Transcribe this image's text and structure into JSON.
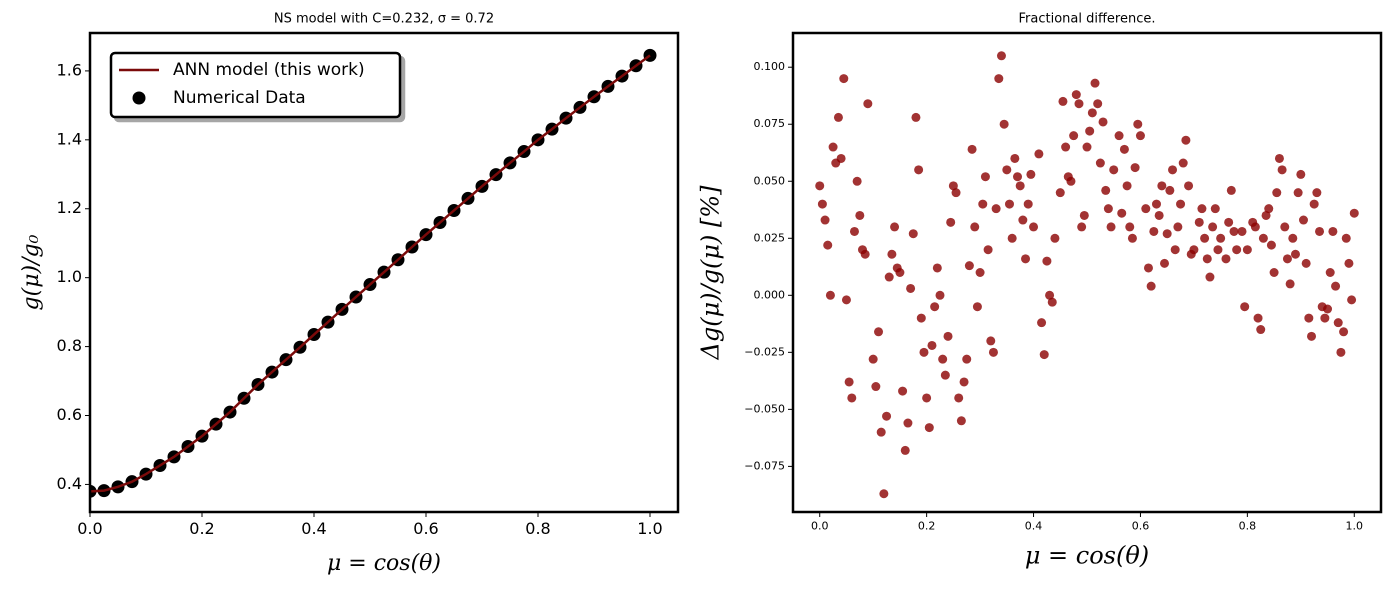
{
  "chart_data": [
    {
      "type": "line",
      "title": "NS model with C=0.232, σ = 0.72",
      "xlabel": "μ = cos(θ)",
      "ylabel": "g(μ)/g₀",
      "x": [
        0,
        0.025,
        0.05,
        0.075,
        0.1,
        0.125,
        0.15,
        0.175,
        0.2,
        0.225,
        0.25,
        0.275,
        0.3,
        0.325,
        0.35,
        0.375,
        0.4,
        0.425,
        0.45,
        0.475,
        0.5,
        0.525,
        0.55,
        0.575,
        0.6,
        0.625,
        0.65,
        0.675,
        0.7,
        0.725,
        0.75,
        0.775,
        0.8,
        0.825,
        0.85,
        0.875,
        0.9,
        0.925,
        0.95,
        0.975,
        1
      ],
      "series": [
        {
          "name": "ANN model (this work)",
          "type": "line",
          "color": "#7b0a0a",
          "values": [
            0.38,
            0.382,
            0.393,
            0.408,
            0.43,
            0.455,
            0.48,
            0.51,
            0.54,
            0.575,
            0.61,
            0.65,
            0.69,
            0.726,
            0.762,
            0.798,
            0.835,
            0.871,
            0.908,
            0.944,
            0.98,
            1.016,
            1.052,
            1.089,
            1.125,
            1.16,
            1.195,
            1.23,
            1.265,
            1.299,
            1.333,
            1.366,
            1.4,
            1.431,
            1.463,
            1.494,
            1.525,
            1.555,
            1.585,
            1.615,
            1.645
          ]
        },
        {
          "name": "Numerical Data",
          "type": "scatter",
          "color": "#000000",
          "values": [
            0.38,
            0.382,
            0.393,
            0.408,
            0.43,
            0.455,
            0.48,
            0.51,
            0.54,
            0.575,
            0.61,
            0.65,
            0.69,
            0.726,
            0.762,
            0.798,
            0.835,
            0.871,
            0.908,
            0.944,
            0.98,
            1.016,
            1.052,
            1.089,
            1.125,
            1.16,
            1.195,
            1.23,
            1.265,
            1.299,
            1.333,
            1.366,
            1.4,
            1.431,
            1.463,
            1.494,
            1.525,
            1.555,
            1.585,
            1.615,
            1.645
          ]
        }
      ],
      "xlim": [
        0,
        1.05
      ],
      "ylim": [
        0.32,
        1.71
      ],
      "xticks": [
        {
          "value": 0,
          "label": "0.0"
        },
        0.2,
        0.4,
        0.6,
        0.8,
        {
          "value": 1,
          "label": "1.0"
        }
      ],
      "yticks": [
        0.4,
        0.6,
        0.8,
        {
          "value": 1,
          "label": "1.0"
        },
        1.2,
        1.4,
        1.6
      ],
      "legend": "upper left"
    },
    {
      "type": "scatter",
      "title": "Fractional difference.",
      "xlabel": "μ = cos(θ)",
      "ylabel": "Δg(μ)/g(μ)  [%]",
      "color": "#8b0000",
      "x": [
        0,
        0.005,
        0.01,
        0.015,
        0.02,
        0.025,
        0.03,
        0.035,
        0.04,
        0.045,
        0.05,
        0.055,
        0.06,
        0.065,
        0.07,
        0.075,
        0.08,
        0.085,
        0.09,
        0.1,
        0.105,
        0.11,
        0.115,
        0.12,
        0.125,
        0.13,
        0.135,
        0.14,
        0.145,
        0.15,
        0.155,
        0.16,
        0.165,
        0.17,
        0.175,
        0.18,
        0.185,
        0.19,
        0.195,
        0.2,
        0.205,
        0.21,
        0.215,
        0.22,
        0.225,
        0.23,
        0.235,
        0.24,
        0.245,
        0.25,
        0.255,
        0.26,
        0.265,
        0.27,
        0.275,
        0.28,
        0.285,
        0.29,
        0.295,
        0.3,
        0.305,
        0.31,
        0.315,
        0.32,
        0.325,
        0.33,
        0.335,
        0.34,
        0.345,
        0.35,
        0.355,
        0.36,
        0.365,
        0.37,
        0.375,
        0.38,
        0.385,
        0.39,
        0.395,
        0.4,
        0.41,
        0.415,
        0.42,
        0.425,
        0.43,
        0.435,
        0.44,
        0.45,
        0.455,
        0.46,
        0.465,
        0.47,
        0.475,
        0.48,
        0.485,
        0.49,
        0.495,
        0.5,
        0.505,
        0.51,
        0.515,
        0.52,
        0.525,
        0.53,
        0.535,
        0.54,
        0.545,
        0.55,
        0.56,
        0.565,
        0.57,
        0.575,
        0.58,
        0.585,
        0.59,
        0.595,
        0.6,
        0.61,
        0.615,
        0.62,
        0.625,
        0.63,
        0.635,
        0.64,
        0.645,
        0.65,
        0.655,
        0.66,
        0.665,
        0.67,
        0.675,
        0.68,
        0.685,
        0.69,
        0.695,
        0.7,
        0.71,
        0.715,
        0.72,
        0.725,
        0.73,
        0.735,
        0.74,
        0.745,
        0.75,
        0.76,
        0.765,
        0.77,
        0.775,
        0.78,
        0.79,
        0.795,
        0.8,
        0.81,
        0.815,
        0.82,
        0.825,
        0.83,
        0.835,
        0.84,
        0.845,
        0.85,
        0.855,
        0.86,
        0.865,
        0.87,
        0.875,
        0.88,
        0.885,
        0.89,
        0.895,
        0.9,
        0.905,
        0.91,
        0.915,
        0.92,
        0.925,
        0.93,
        0.935,
        0.94,
        0.945,
        0.95,
        0.955,
        0.96,
        0.965,
        0.97,
        0.975,
        0.98,
        0.985,
        0.99,
        0.995,
        1
      ],
      "values": [
        0.048,
        0.04,
        0.033,
        0.022,
        0,
        0.065,
        0.058,
        0.078,
        0.06,
        0.095,
        -0.002,
        -0.038,
        -0.045,
        0.028,
        0.05,
        0.035,
        0.02,
        0.018,
        0.084,
        -0.028,
        -0.04,
        -0.016,
        -0.06,
        -0.087,
        -0.053,
        0.008,
        0.018,
        0.03,
        0.012,
        0.01,
        -0.042,
        -0.068,
        -0.056,
        0.003,
        0.027,
        0.078,
        0.055,
        -0.01,
        -0.025,
        -0.045,
        -0.058,
        -0.022,
        -0.005,
        0.012,
        0,
        -0.028,
        -0.035,
        -0.018,
        0.032,
        0.048,
        0.045,
        -0.045,
        -0.055,
        -0.038,
        -0.028,
        0.013,
        0.064,
        0.03,
        -0.005,
        0.01,
        0.04,
        0.052,
        0.02,
        -0.02,
        -0.025,
        0.038,
        0.095,
        0.105,
        0.075,
        0.055,
        0.04,
        0.025,
        0.06,
        0.052,
        0.048,
        0.033,
        0.016,
        0.04,
        0.053,
        0.03,
        0.062,
        -0.012,
        -0.026,
        0.015,
        0,
        -0.003,
        0.025,
        0.045,
        0.085,
        0.065,
        0.052,
        0.05,
        0.07,
        0.088,
        0.084,
        0.03,
        0.035,
        0.065,
        0.072,
        0.08,
        0.093,
        0.084,
        0.058,
        0.076,
        0.046,
        0.038,
        0.03,
        0.055,
        0.07,
        0.036,
        0.064,
        0.048,
        0.03,
        0.025,
        0.056,
        0.075,
        0.07,
        0.038,
        0.012,
        0.004,
        0.028,
        0.04,
        0.035,
        0.048,
        0.014,
        0.027,
        0.046,
        0.055,
        0.02,
        0.03,
        0.04,
        0.058,
        0.068,
        0.048,
        0.018,
        0.02,
        0.032,
        0.038,
        0.025,
        0.016,
        0.008,
        0.03,
        0.038,
        0.02,
        0.025,
        0.016,
        0.032,
        0.046,
        0.028,
        0.02,
        0.028,
        -0.005,
        0.02,
        0.032,
        0.03,
        -0.01,
        -0.015,
        0.025,
        0.035,
        0.038,
        0.022,
        0.01,
        0.045,
        0.06,
        0.055,
        0.03,
        0.016,
        0.005,
        0.025,
        0.018,
        0.045,
        0.053,
        0.033,
        0.014,
        -0.01,
        -0.018,
        0.04,
        0.045,
        0.028,
        -0.005,
        -0.01,
        -0.006,
        0.01,
        0.028,
        0.004,
        -0.012,
        -0.025,
        -0.016,
        0.025,
        0.014,
        -0.002,
        0.036
      ],
      "xlim": [
        -0.05,
        1.05
      ],
      "ylim": [
        -0.095,
        0.115
      ],
      "xticks": [
        {
          "value": 0,
          "label": "0.0"
        },
        0.2,
        0.4,
        0.6,
        0.8,
        {
          "value": 1,
          "label": "1.0"
        }
      ],
      "yticks": [
        {
          "value": -0.075,
          "label": "−0.075"
        },
        {
          "value": -0.05,
          "label": "−0.050"
        },
        {
          "value": -0.025,
          "label": "−0.025"
        },
        {
          "value": 0,
          "label": "0.000"
        },
        0.025,
        {
          "value": 0.05,
          "label": "0.050"
        },
        0.075,
        {
          "value": 0.1,
          "label": "0.100"
        }
      ]
    }
  ]
}
